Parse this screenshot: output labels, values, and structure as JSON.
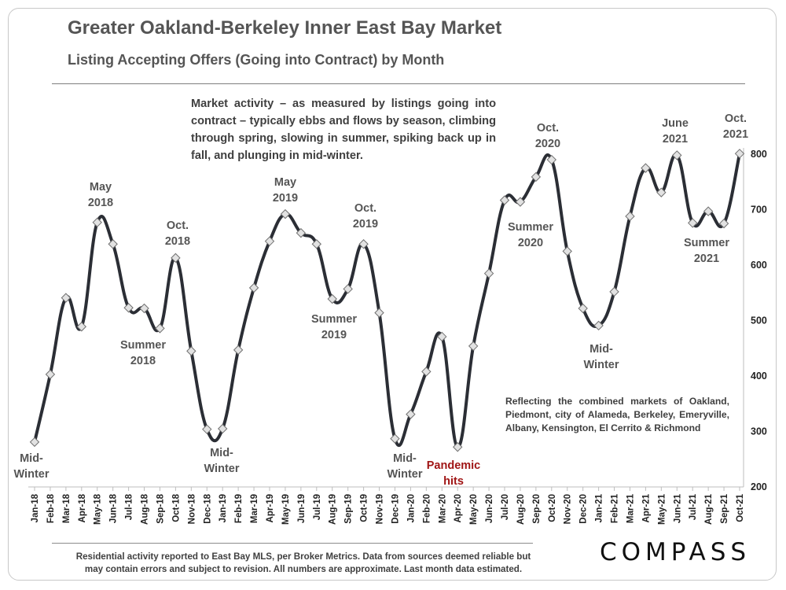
{
  "header": {
    "title": "Greater Oakland-Berkeley Inner East Bay Market",
    "subtitle": "Listing Accepting Offers (Going into Contract) by Month"
  },
  "description": "Market activity – as measured by listings going into contract – typically ebbs and flows by season, climbing through spring, slowing in summer, spiking back up in fall, and plunging in mid-winter.",
  "combined_note": "Reflecting the combined markets of Oakland, Piedmont, city of Alameda, Berkeley, Emeryville, Albany, Kensington, El Cerrito & Richmond",
  "footnote": {
    "line1": "Residential activity reported to East Bay MLS, per Broker Metrics. Data from sources deemed reliable but",
    "line2": "may contain errors and subject to revision. All numbers are approximate. Last month data estimated."
  },
  "logo": "COMPASS",
  "colors": {
    "line": "#2b2e35",
    "marker_fill": "#e2e2e2",
    "marker_stroke": "#707070",
    "annotation": "#555555",
    "highlight": "#a01515"
  },
  "chart_data": {
    "type": "line",
    "title": "Listing Accepting Offers (Going into Contract) by Month",
    "xlabel": "",
    "ylabel": "",
    "y_axis_side": "right",
    "ylim": [
      200,
      800
    ],
    "yticks": [
      200,
      300,
      400,
      500,
      600,
      700,
      800
    ],
    "grid": false,
    "categories": [
      "Jan-18",
      "Feb-18",
      "Mar-18",
      "Apr-18",
      "May-18",
      "Jun-18",
      "Jul-18",
      "Aug-18",
      "Sep-18",
      "Oct-18",
      "Nov-18",
      "Dec-18",
      "Jan-19",
      "Feb-19",
      "Mar-19",
      "Apr-19",
      "May-19",
      "Jun-19",
      "Jul-19",
      "Aug-19",
      "Sep-19",
      "Oct-19",
      "Nov-19",
      "Dec-19",
      "Jan-20",
      "Feb-20",
      "Mar-20",
      "Apr-20",
      "May-20",
      "Jun-20",
      "Jul-20",
      "Aug-20",
      "Sep-20",
      "Oct-20",
      "Nov-20",
      "Dec-20",
      "Jan-21",
      "Feb-21",
      "Mar-21",
      "Apr-21",
      "May-21",
      "Jun-21",
      "Jul-21",
      "Aug-21",
      "Sep-21",
      "Oct-21"
    ],
    "series": [
      {
        "name": "Listings accepting offers",
        "marker": "diamond",
        "values": [
          281,
          403,
          541,
          489,
          677,
          638,
          523,
          522,
          486,
          613,
          445,
          304,
          305,
          447,
          559,
          643,
          692,
          658,
          638,
          539,
          557,
          638,
          514,
          287,
          331,
          408,
          471,
          272,
          454,
          585,
          717,
          714,
          759,
          790,
          625,
          522,
          491,
          552,
          688,
          775,
          731,
          798,
          676,
          697,
          675,
          801
        ]
      }
    ],
    "annotations": [
      {
        "lines": [
          "Mid-",
          "Winter"
        ],
        "near": "Jan-18",
        "position": "below"
      },
      {
        "lines": [
          "May",
          "2018"
        ],
        "near": "May-18",
        "position": "above"
      },
      {
        "lines": [
          "Summer",
          "2018"
        ],
        "near": "Aug-18",
        "position": "below"
      },
      {
        "lines": [
          "Oct.",
          "2018"
        ],
        "near": "Oct-18",
        "position": "above"
      },
      {
        "lines": [
          "Mid-",
          "Winter"
        ],
        "near": "Jan-19",
        "position": "below"
      },
      {
        "lines": [
          "May",
          "2019"
        ],
        "near": "May-19",
        "position": "above"
      },
      {
        "lines": [
          "Summer",
          "2019"
        ],
        "near": "Aug-19",
        "position": "below"
      },
      {
        "lines": [
          "Oct.",
          "2019"
        ],
        "near": "Oct-19",
        "position": "above"
      },
      {
        "lines": [
          "Mid-",
          "Winter"
        ],
        "near": "Dec-19",
        "position": "below"
      },
      {
        "lines": [
          "Pandemic",
          "hits"
        ],
        "near": "Apr-20",
        "position": "below",
        "highlight": true
      },
      {
        "lines": [
          "Oct.",
          "2020"
        ],
        "near": "Oct-20",
        "position": "above"
      },
      {
        "lines": [
          "Summer",
          "2020"
        ],
        "near": "Aug-20",
        "position": "below"
      },
      {
        "lines": [
          "Mid-",
          "Winter"
        ],
        "near": "Jan-21",
        "position": "below"
      },
      {
        "lines": [
          "June",
          "2021"
        ],
        "near": "Jun-21",
        "position": "above"
      },
      {
        "lines": [
          "Summer",
          "2021"
        ],
        "near": "Aug-21",
        "position": "below"
      },
      {
        "lines": [
          "Oct.",
          "2021"
        ],
        "near": "Oct-21",
        "position": "above"
      }
    ]
  }
}
